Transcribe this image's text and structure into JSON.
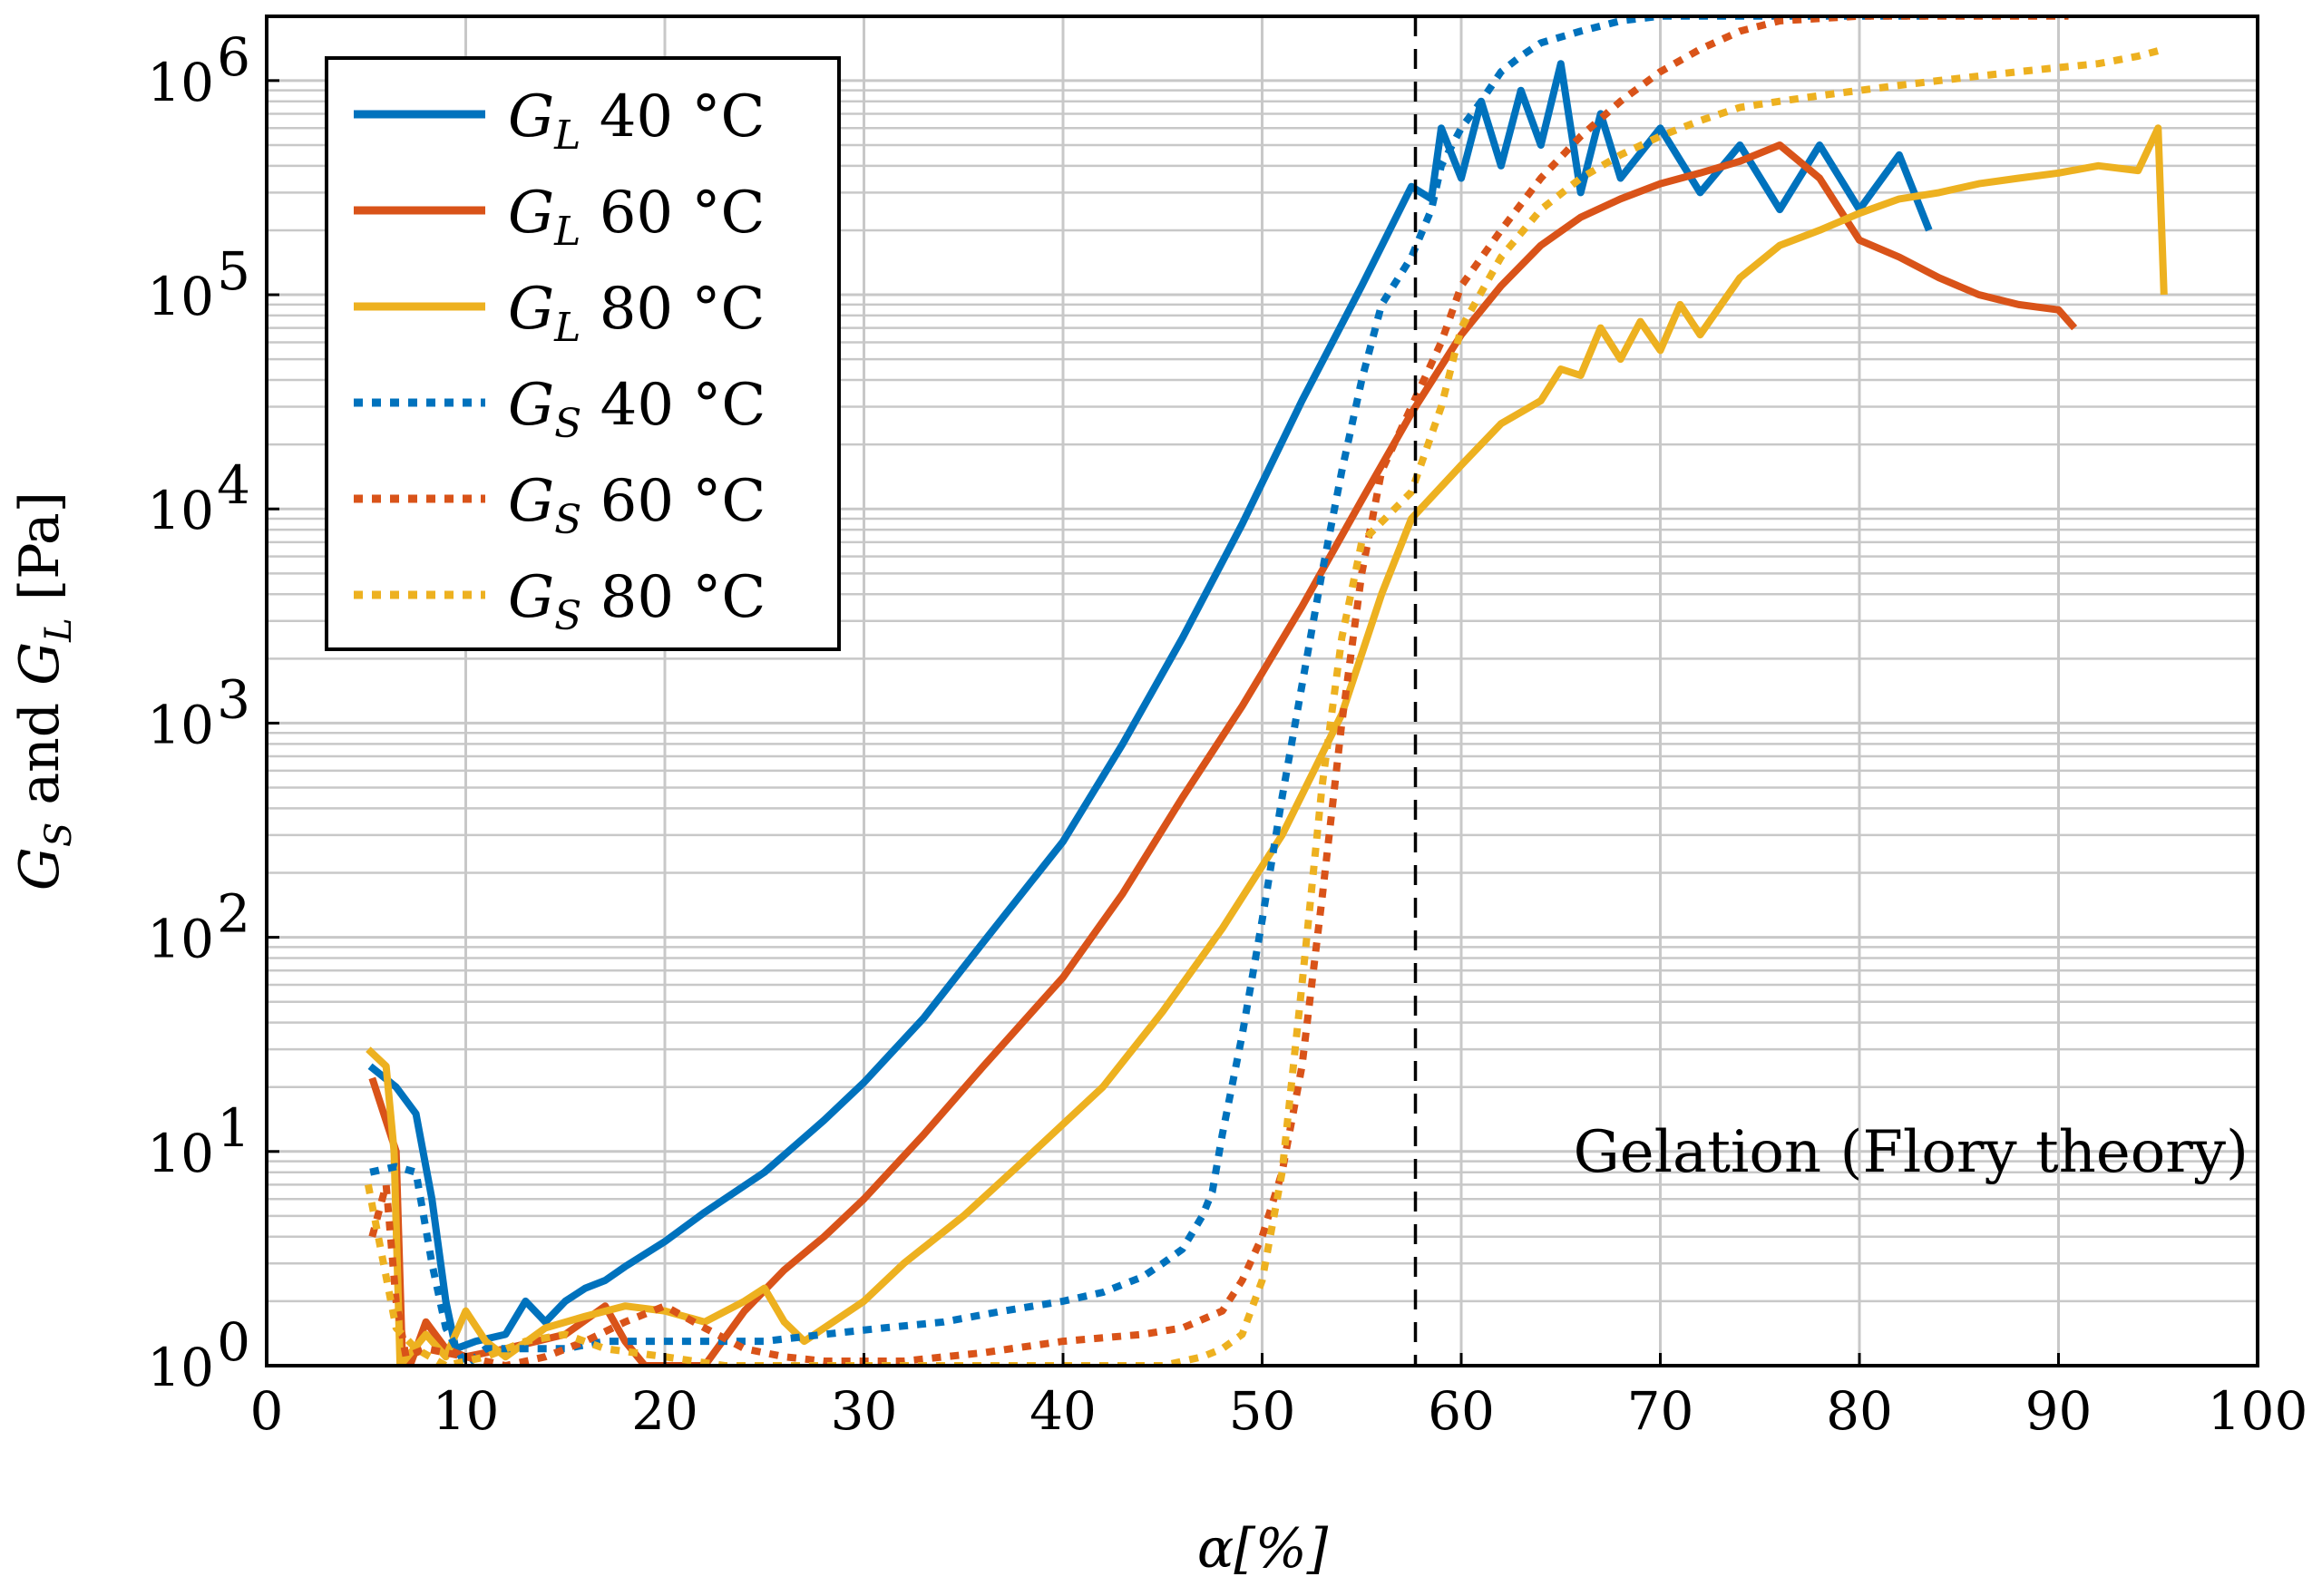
{
  "chart_data": {
    "type": "line",
    "xlabel": "α[%]",
    "ylabel": "G_S and G_L [Pa]",
    "xlim": [
      0,
      100
    ],
    "ylim_log10": [
      0,
      6.3
    ],
    "y_scale": "log",
    "x_ticks": [
      0,
      10,
      20,
      30,
      40,
      50,
      60,
      70,
      80,
      90,
      100
    ],
    "y_ticks": [
      {
        "base": "10",
        "exp": "0",
        "value": 1
      },
      {
        "base": "10",
        "exp": "1",
        "value": 10
      },
      {
        "base": "10",
        "exp": "2",
        "value": 100
      },
      {
        "base": "10",
        "exp": "3",
        "value": 1000
      },
      {
        "base": "10",
        "exp": "4",
        "value": 10000
      },
      {
        "base": "10",
        "exp": "5",
        "value": 100000
      },
      {
        "base": "10",
        "exp": "6",
        "value": 1000000
      }
    ],
    "grid": true,
    "legend_position": "top-left",
    "annotation": {
      "text": "Gelation (Flory theory)",
      "x": 57.7
    },
    "series": [
      {
        "name": "G_L 40 °C",
        "sym": "G",
        "sub": "L",
        "temp": "40 °C",
        "color": "#0072BD",
        "style": "solid",
        "points": [
          [
            5.2,
            25
          ],
          [
            6.5,
            20
          ],
          [
            7.5,
            15
          ],
          [
            8.3,
            6
          ],
          [
            9,
            2
          ],
          [
            9.5,
            1.2
          ],
          [
            10.5,
            1.3
          ],
          [
            12,
            1.4
          ],
          [
            13,
            2
          ],
          [
            14,
            1.6
          ],
          [
            15,
            2
          ],
          [
            16,
            2.3
          ],
          [
            17,
            2.5
          ],
          [
            18,
            2.9
          ],
          [
            20,
            3.8
          ],
          [
            22,
            5.2
          ],
          [
            25,
            8
          ],
          [
            28,
            14
          ],
          [
            30,
            21
          ],
          [
            33,
            42
          ],
          [
            36,
            95
          ],
          [
            40,
            280
          ],
          [
            43,
            800
          ],
          [
            46,
            2500
          ],
          [
            49,
            8500
          ],
          [
            52,
            32000
          ],
          [
            55,
            110000
          ],
          [
            57.5,
            320000
          ],
          [
            58.5,
            280000
          ],
          [
            59,
            600000
          ],
          [
            60,
            350000
          ],
          [
            61,
            800000
          ],
          [
            62,
            400000
          ],
          [
            63,
            900000
          ],
          [
            64,
            500000
          ],
          [
            65,
            1200000
          ],
          [
            66,
            300000
          ],
          [
            67,
            700000
          ],
          [
            68,
            350000
          ],
          [
            70,
            600000
          ],
          [
            72,
            300000
          ],
          [
            74,
            500000
          ],
          [
            76,
            250000
          ],
          [
            78,
            500000
          ],
          [
            80,
            250000
          ],
          [
            82,
            450000
          ],
          [
            83.5,
            200000
          ]
        ]
      },
      {
        "name": "G_L 60 °C",
        "sym": "G",
        "sub": "L",
        "temp": "60 °C",
        "color": "#D95319",
        "style": "solid",
        "points": [
          [
            5.3,
            22
          ],
          [
            6.5,
            10
          ],
          [
            6.8,
            1.2
          ],
          [
            7.2,
            1.0
          ],
          [
            8,
            1.6
          ],
          [
            9,
            1.2
          ],
          [
            10,
            1.1
          ],
          [
            12,
            1.2
          ],
          [
            15,
            1.4
          ],
          [
            17,
            1.9
          ],
          [
            18,
            1.3
          ],
          [
            19,
            1.0
          ],
          [
            22,
            1.0
          ],
          [
            24,
            1.8
          ],
          [
            26,
            2.8
          ],
          [
            28,
            4
          ],
          [
            30,
            6
          ],
          [
            33,
            12
          ],
          [
            36,
            25
          ],
          [
            40,
            65
          ],
          [
            43,
            160
          ],
          [
            46,
            450
          ],
          [
            49,
            1200
          ],
          [
            52,
            3500
          ],
          [
            55,
            11000
          ],
          [
            57.5,
            28000
          ],
          [
            60,
            65000
          ],
          [
            62,
            110000
          ],
          [
            64,
            170000
          ],
          [
            66,
            230000
          ],
          [
            68,
            280000
          ],
          [
            70,
            330000
          ],
          [
            72,
            370000
          ],
          [
            74,
            420000
          ],
          [
            76,
            500000
          ],
          [
            78,
            350000
          ],
          [
            80,
            180000
          ],
          [
            82,
            150000
          ],
          [
            84,
            120000
          ],
          [
            86,
            100000
          ],
          [
            88,
            90000
          ],
          [
            90,
            85000
          ],
          [
            90.8,
            70000
          ]
        ]
      },
      {
        "name": "G_L 80 °C",
        "sym": "G",
        "sub": "L",
        "temp": "80 °C",
        "color": "#EDB120",
        "style": "solid",
        "points": [
          [
            5.1,
            30
          ],
          [
            6,
            25
          ],
          [
            6.4,
            10
          ],
          [
            6.7,
            1.0
          ],
          [
            8,
            1.4
          ],
          [
            9,
            1.1
          ],
          [
            10,
            1.8
          ],
          [
            11,
            1.3
          ],
          [
            12,
            1.1
          ],
          [
            14,
            1.5
          ],
          [
            16,
            1.7
          ],
          [
            18,
            1.9
          ],
          [
            20,
            1.8
          ],
          [
            22,
            1.6
          ],
          [
            24,
            2
          ],
          [
            25,
            2.3
          ],
          [
            26,
            1.6
          ],
          [
            27,
            1.3
          ],
          [
            28,
            1.5
          ],
          [
            30,
            2
          ],
          [
            32,
            3
          ],
          [
            35,
            5
          ],
          [
            38,
            9
          ],
          [
            42,
            20
          ],
          [
            45,
            45
          ],
          [
            48,
            110
          ],
          [
            51,
            300
          ],
          [
            54,
            1100
          ],
          [
            56,
            4000
          ],
          [
            57.5,
            9000
          ],
          [
            60,
            16000
          ],
          [
            62,
            25000
          ],
          [
            64,
            32000
          ],
          [
            65,
            45000
          ],
          [
            66,
            42000
          ],
          [
            67,
            70000
          ],
          [
            68,
            50000
          ],
          [
            69,
            75000
          ],
          [
            70,
            55000
          ],
          [
            71,
            90000
          ],
          [
            72,
            65000
          ],
          [
            74,
            120000
          ],
          [
            76,
            170000
          ],
          [
            78,
            200000
          ],
          [
            80,
            240000
          ],
          [
            82,
            280000
          ],
          [
            84,
            300000
          ],
          [
            86,
            330000
          ],
          [
            88,
            350000
          ],
          [
            90,
            370000
          ],
          [
            92,
            400000
          ],
          [
            94,
            380000
          ],
          [
            95,
            600000
          ],
          [
            95.3,
            100000
          ]
        ]
      },
      {
        "name": "G_S 40 °C",
        "sym": "G",
        "sub": "S",
        "temp": "40 °C",
        "color": "#0072BD",
        "style": "dotted",
        "points": [
          [
            5.2,
            8
          ],
          [
            6.5,
            8.5
          ],
          [
            7.5,
            8
          ],
          [
            8.3,
            3
          ],
          [
            9,
            1.5
          ],
          [
            10,
            1.0
          ],
          [
            11,
            1.2
          ],
          [
            13,
            1.2
          ],
          [
            15,
            1.2
          ],
          [
            17,
            1.3
          ],
          [
            19,
            1.3
          ],
          [
            22,
            1.3
          ],
          [
            25,
            1.3
          ],
          [
            28,
            1.4
          ],
          [
            31,
            1.5
          ],
          [
            34,
            1.6
          ],
          [
            37,
            1.8
          ],
          [
            40,
            2
          ],
          [
            42,
            2.2
          ],
          [
            44,
            2.6
          ],
          [
            45,
            3
          ],
          [
            46,
            3.5
          ],
          [
            47,
            5
          ],
          [
            47.5,
            6.5
          ],
          [
            48,
            12
          ],
          [
            49,
            35
          ],
          [
            50,
            120
          ],
          [
            51,
            450
          ],
          [
            52,
            1500
          ],
          [
            53,
            5000
          ],
          [
            54,
            15000
          ],
          [
            55,
            40000
          ],
          [
            56,
            90000
          ],
          [
            57.5,
            150000
          ],
          [
            58.5,
            250000
          ],
          [
            59,
            400000
          ],
          [
            60,
            600000
          ],
          [
            61,
            800000
          ],
          [
            62,
            1100000
          ],
          [
            63,
            1300000
          ],
          [
            64,
            1500000
          ],
          [
            66,
            1700000
          ],
          [
            68,
            1900000
          ],
          [
            70,
            2000000
          ],
          [
            74,
            2000000
          ],
          [
            78,
            2000000
          ],
          [
            82,
            2000000
          ],
          [
            83.5,
            2000000
          ]
        ]
      },
      {
        "name": "G_S 60 °C",
        "sym": "G",
        "sub": "S",
        "temp": "60 °C",
        "color": "#D95319",
        "style": "dotted",
        "points": [
          [
            5.3,
            4
          ],
          [
            6,
            7
          ],
          [
            6.5,
            2
          ],
          [
            7,
            1.1
          ],
          [
            8,
            1.2
          ],
          [
            10,
            1.1
          ],
          [
            12,
            1.0
          ],
          [
            14,
            1.1
          ],
          [
            16,
            1.3
          ],
          [
            18,
            1.6
          ],
          [
            20,
            1.9
          ],
          [
            22,
            1.5
          ],
          [
            24,
            1.2
          ],
          [
            26,
            1.1
          ],
          [
            28,
            1.05
          ],
          [
            32,
            1.05
          ],
          [
            36,
            1.15
          ],
          [
            40,
            1.3
          ],
          [
            44,
            1.4
          ],
          [
            46,
            1.5
          ],
          [
            48,
            1.8
          ],
          [
            49,
            2.5
          ],
          [
            50,
            4
          ],
          [
            51,
            8
          ],
          [
            52,
            25
          ],
          [
            53,
            150
          ],
          [
            54,
            1000
          ],
          [
            55,
            5000
          ],
          [
            56,
            15000
          ],
          [
            57.5,
            30000
          ],
          [
            59,
            60000
          ],
          [
            60,
            110000
          ],
          [
            62,
            200000
          ],
          [
            64,
            350000
          ],
          [
            66,
            550000
          ],
          [
            68,
            800000
          ],
          [
            70,
            1100000
          ],
          [
            72,
            1400000
          ],
          [
            74,
            1700000
          ],
          [
            76,
            1900000
          ],
          [
            80,
            2000000
          ],
          [
            85,
            2000000
          ],
          [
            90.5,
            2000000
          ]
        ]
      },
      {
        "name": "G_S 80 °C",
        "sym": "G",
        "sub": "S",
        "temp": "80 °C",
        "color": "#EDB120",
        "style": "dotted",
        "points": [
          [
            5.1,
            7
          ],
          [
            6.5,
            1.5
          ],
          [
            7.5,
            1.2
          ],
          [
            9,
            1.0
          ],
          [
            11,
            1.1
          ],
          [
            13,
            1.3
          ],
          [
            15,
            1.4
          ],
          [
            17,
            1.2
          ],
          [
            20,
            1.1
          ],
          [
            23,
            1.0
          ],
          [
            26,
            1.0
          ],
          [
            30,
            1.0
          ],
          [
            35,
            1.0
          ],
          [
            40,
            1.0
          ],
          [
            45,
            1.0
          ],
          [
            47,
            1.1
          ],
          [
            48,
            1.2
          ],
          [
            49,
            1.4
          ],
          [
            50,
            2.5
          ],
          [
            51,
            8
          ],
          [
            52,
            60
          ],
          [
            53,
            500
          ],
          [
            54,
            2500
          ],
          [
            55,
            7000
          ],
          [
            57.5,
            12000
          ],
          [
            59,
            30000
          ],
          [
            60,
            70000
          ],
          [
            62,
            150000
          ],
          [
            64,
            250000
          ],
          [
            66,
            350000
          ],
          [
            68,
            450000
          ],
          [
            70,
            550000
          ],
          [
            72,
            650000
          ],
          [
            74,
            750000
          ],
          [
            76,
            800000
          ],
          [
            78,
            850000
          ],
          [
            80,
            900000
          ],
          [
            82,
            950000
          ],
          [
            84,
            1000000
          ],
          [
            86,
            1050000
          ],
          [
            88,
            1100000
          ],
          [
            90,
            1150000
          ],
          [
            92,
            1200000
          ],
          [
            94,
            1300000
          ],
          [
            95.3,
            1400000
          ]
        ]
      }
    ]
  }
}
